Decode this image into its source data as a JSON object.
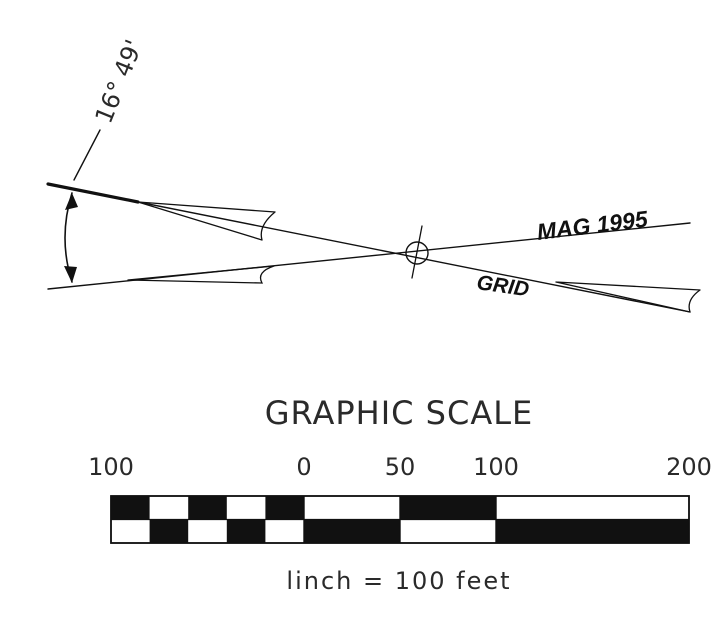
{
  "north_arrow": {
    "angle_label": "16° 49'",
    "mag_label": "MAG 1995",
    "grid_label": "GRID"
  },
  "scale": {
    "title": "GRAPHIC SCALE",
    "tick_labels": [
      "100",
      "0",
      "50",
      "100",
      "200"
    ],
    "caption": "linch = 100 feet"
  },
  "colors": {
    "ink": "#111111",
    "paper": "#ffffff"
  }
}
